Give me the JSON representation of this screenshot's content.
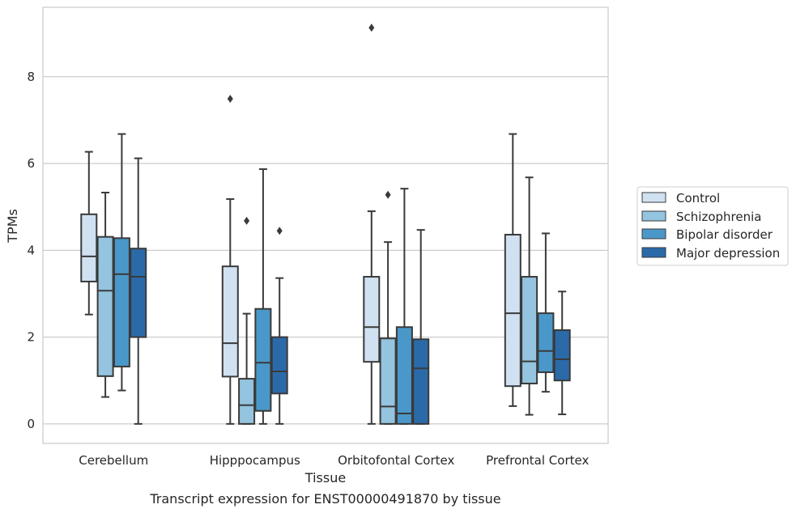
{
  "chart_data": {
    "type": "boxplot",
    "title": "Transcript expression for ENST00000491870 by tissue",
    "xlabel": "Tissue",
    "ylabel": "TPMs",
    "ylim": [
      -0.45,
      9.6
    ],
    "yticks": [
      0,
      2,
      4,
      6,
      8
    ],
    "grid": "horizontal",
    "legend_position": "right",
    "categories": [
      "Cerebellum",
      "Hipppocampus",
      "Orbitofontal Cortex",
      "Prefrontal Cortex"
    ],
    "series": [
      {
        "name": "Control",
        "color": "#d0e1f2",
        "boxes": [
          {
            "whisker_low": 2.52,
            "q1": 3.28,
            "median": 3.86,
            "q3": 4.83,
            "whisker_high": 6.27,
            "outliers": []
          },
          {
            "whisker_low": 0.0,
            "q1": 1.09,
            "median": 1.86,
            "q3": 3.63,
            "whisker_high": 5.18,
            "outliers": [
              7.49
            ]
          },
          {
            "whisker_low": 0.0,
            "q1": 1.43,
            "median": 2.23,
            "q3": 3.39,
            "whisker_high": 4.9,
            "outliers": [
              9.13
            ]
          },
          {
            "whisker_low": 0.41,
            "q1": 0.87,
            "median": 2.55,
            "q3": 4.36,
            "whisker_high": 6.68,
            "outliers": []
          }
        ]
      },
      {
        "name": "Schizophrenia",
        "color": "#94c4df",
        "boxes": [
          {
            "whisker_low": 0.62,
            "q1": 1.1,
            "median": 3.07,
            "q3": 4.31,
            "whisker_high": 5.33,
            "outliers": []
          },
          {
            "whisker_low": 0.0,
            "q1": 0.0,
            "median": 0.43,
            "q3": 1.04,
            "whisker_high": 2.54,
            "outliers": [
              4.68
            ]
          },
          {
            "whisker_low": 0.0,
            "q1": 0.0,
            "median": 0.4,
            "q3": 1.97,
            "whisker_high": 4.19,
            "outliers": [
              5.28
            ]
          },
          {
            "whisker_low": 0.21,
            "q1": 0.93,
            "median": 1.44,
            "q3": 3.39,
            "whisker_high": 5.68,
            "outliers": []
          }
        ]
      },
      {
        "name": "Bipolar disorder",
        "color": "#4a98c9",
        "boxes": [
          {
            "whisker_low": 0.77,
            "q1": 1.32,
            "median": 3.45,
            "q3": 4.28,
            "whisker_high": 6.68,
            "outliers": []
          },
          {
            "whisker_low": 0.0,
            "q1": 0.3,
            "median": 1.41,
            "q3": 2.65,
            "whisker_high": 5.87,
            "outliers": []
          },
          {
            "whisker_low": 0.0,
            "q1": 0.0,
            "median": 0.24,
            "q3": 2.23,
            "whisker_high": 5.42,
            "outliers": []
          },
          {
            "whisker_low": 0.74,
            "q1": 1.19,
            "median": 1.68,
            "q3": 2.55,
            "whisker_high": 4.39,
            "outliers": []
          }
        ]
      },
      {
        "name": "Major depression",
        "color": "#2b6aa9",
        "boxes": [
          {
            "whisker_low": 0.0,
            "q1": 2.0,
            "median": 3.39,
            "q3": 4.04,
            "whisker_high": 6.12,
            "outliers": []
          },
          {
            "whisker_low": 0.0,
            "q1": 0.7,
            "median": 1.21,
            "q3": 2.0,
            "whisker_high": 3.36,
            "outliers": [
              4.45
            ]
          },
          {
            "whisker_low": 0.0,
            "q1": 0.0,
            "median": 1.28,
            "q3": 1.95,
            "whisker_high": 4.47,
            "outliers": []
          },
          {
            "whisker_low": 0.22,
            "q1": 1.0,
            "median": 1.49,
            "q3": 2.16,
            "whisker_high": 3.05,
            "outliers": []
          }
        ]
      }
    ]
  }
}
